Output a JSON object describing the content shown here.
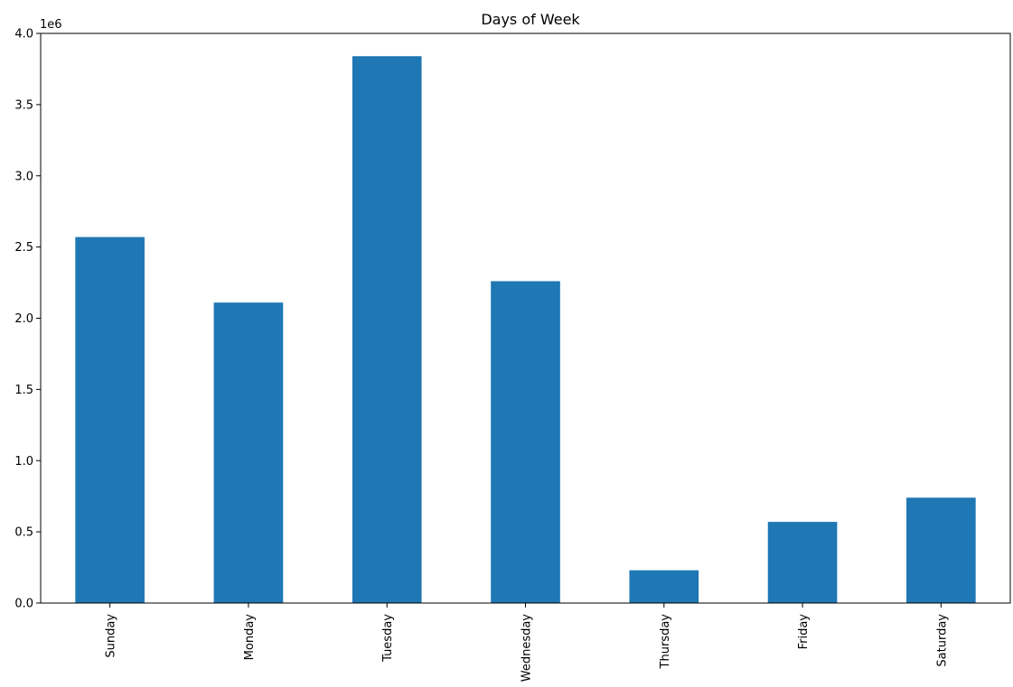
{
  "chart_data": {
    "type": "bar",
    "title": "Days of Week",
    "xlabel": "",
    "ylabel": "",
    "y_scale_label": "1e6",
    "y_scale_factor": 1000000,
    "categories": [
      "Sunday",
      "Monday",
      "Tuesday",
      "Wednesday",
      "Thursday",
      "Friday",
      "Saturday"
    ],
    "values": [
      2570000,
      2110000,
      3840000,
      2260000,
      230000,
      570000,
      740000
    ],
    "ylim": [
      0,
      4000000
    ],
    "y_ticks": [
      0,
      500000,
      1000000,
      1500000,
      2000000,
      2500000,
      3000000,
      3500000,
      4000000
    ],
    "y_tick_labels": [
      "0.0",
      "0.5",
      "1.0",
      "1.5",
      "2.0",
      "2.5",
      "3.0",
      "3.5",
      "4.0"
    ],
    "grid": false,
    "legend": "none",
    "bar_color": "#1f77b4"
  }
}
